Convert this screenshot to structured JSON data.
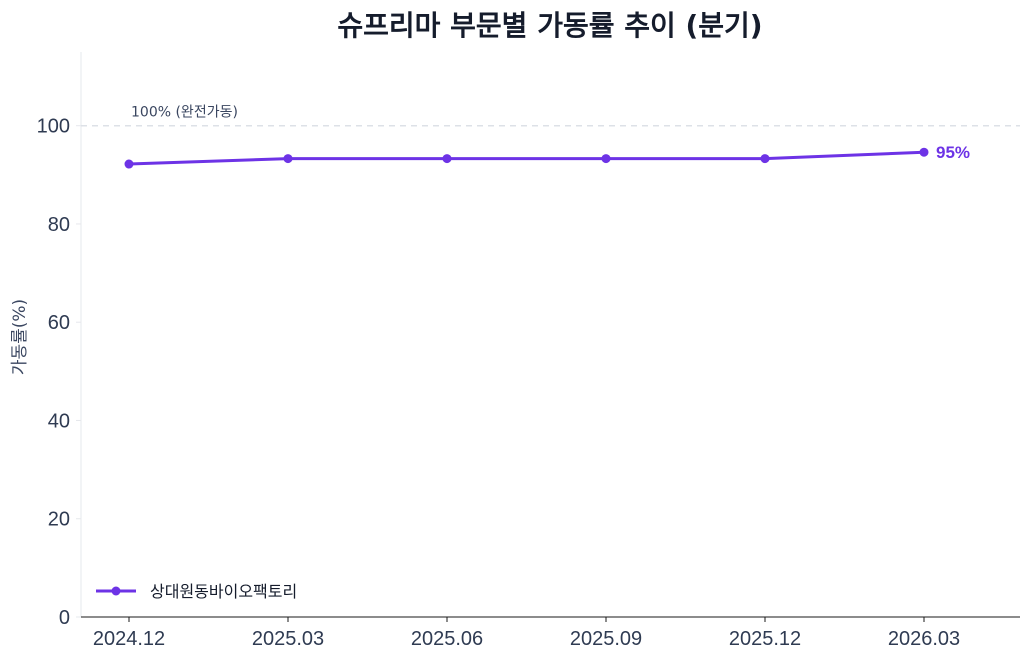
{
  "chart_data": {
    "type": "line",
    "title": "슈프리마 부문별 가동률 추이 (분기)",
    "xlabel": "",
    "ylabel": "가동률(%)",
    "categories": [
      "2024.12",
      "2025.03",
      "2025.06",
      "2025.09",
      "2025.12",
      "2026.03"
    ],
    "series": [
      {
        "name": "상대원동바이오팩토리",
        "values": [
          92.2,
          93.3,
          93.3,
          93.3,
          93.3,
          94.6
        ],
        "color": "#6d33e6"
      }
    ],
    "ylim": [
      0,
      115
    ],
    "yticks": [
      0,
      20,
      40,
      60,
      80,
      100
    ],
    "reference_line": {
      "value": 100,
      "label": "100% (완전가동)"
    },
    "end_label": "95%",
    "grid": false,
    "legend_position": "bottom-left"
  }
}
